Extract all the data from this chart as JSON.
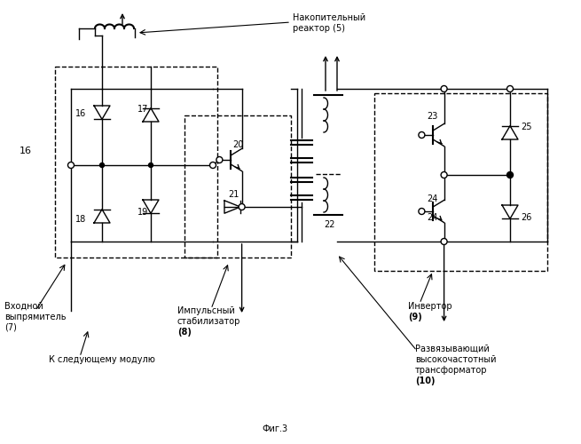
{
  "title": "Фиг.3",
  "bg_color": "#ffffff",
  "labels": {
    "reactor": "Накопительный\nреактор (5)",
    "rectifier": "Входной\nвыпрямитель\n(7)",
    "stabilizer_line1": "Импульсный",
    "stabilizer_line2": "стабилизатор",
    "stabilizer_num": "(8)",
    "inverter_line1": "Инвертор",
    "inverter_num": "(9)",
    "transformer_line1": "Развязывающий",
    "transformer_line2": "высокочастотный",
    "transformer_line3": "трансформатор",
    "transformer_num": "(10)",
    "next_module": "К следующему модулю",
    "block16_label": "16",
    "n16": "16",
    "n17": "17",
    "n18": "18",
    "n19": "19",
    "n20": "20",
    "n21": "21",
    "n22": "22",
    "n23": "23",
    "n24": "24",
    "n25": "25",
    "n26": "26"
  },
  "figsize": [
    6.55,
    5.0
  ],
  "dpi": 100
}
